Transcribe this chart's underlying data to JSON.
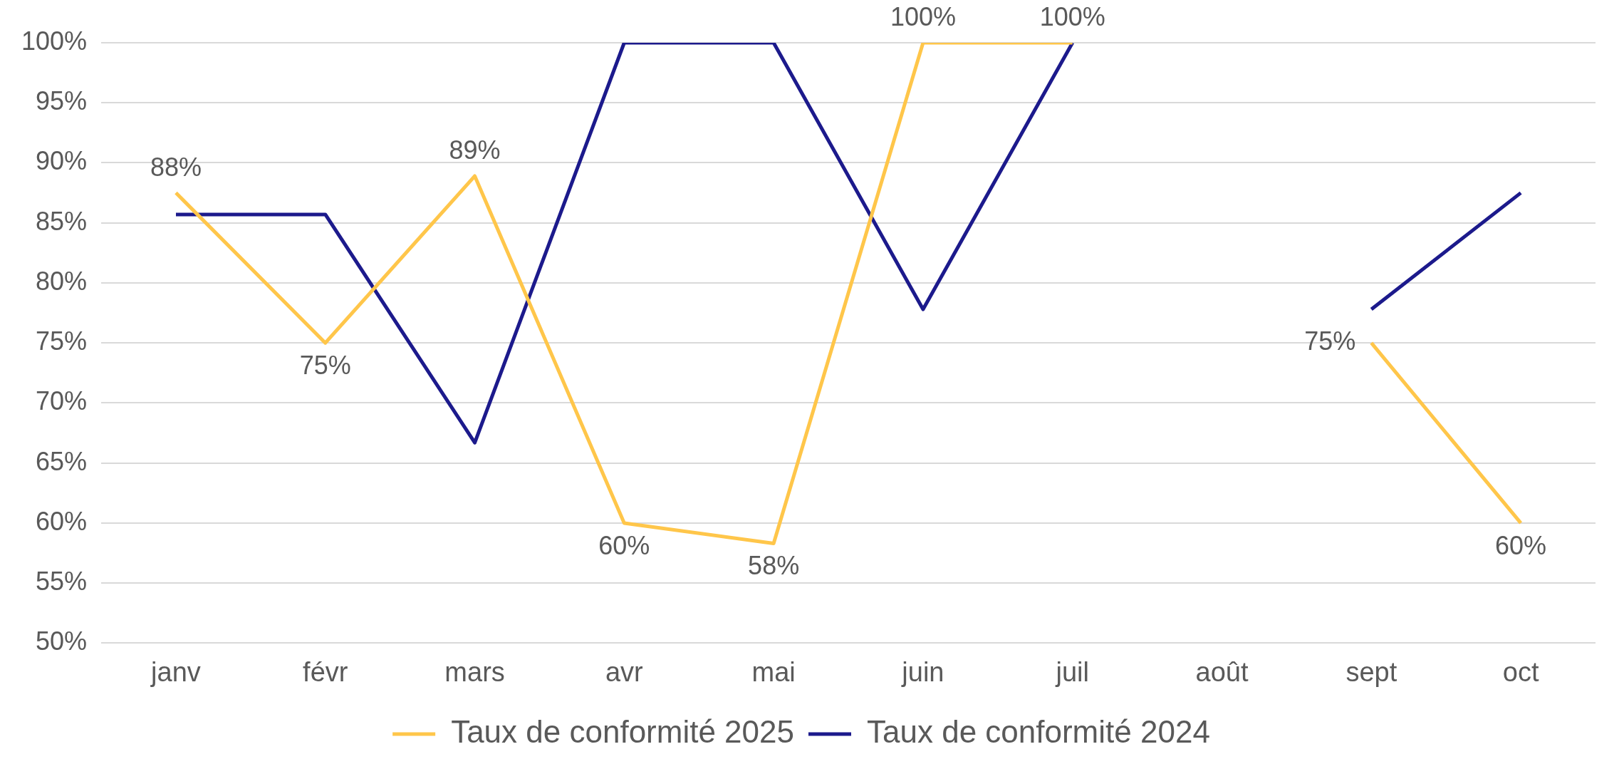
{
  "chart_data": {
    "type": "line",
    "categories": [
      "janv",
      "févr",
      "mars",
      "avr",
      "mai",
      "juin",
      "juil",
      "août",
      "sept",
      "oct"
    ],
    "series": [
      {
        "name": "Taux de conformité 2025",
        "color": "#ffc64a",
        "values": [
          87.5,
          75,
          88.9,
          60,
          58.3,
          100,
          100,
          null,
          75,
          60
        ],
        "value_labels": [
          "88%",
          "75%",
          "89%",
          "60%",
          "58%",
          "100%",
          "100%",
          null,
          "75%",
          "60%"
        ]
      },
      {
        "name": "Taux de conformité 2024",
        "color": "#1c1a8c",
        "values": [
          85.7,
          85.7,
          66.7,
          100,
          100,
          77.8,
          100,
          null,
          77.8,
          87.5
        ]
      }
    ],
    "ylim": [
      50,
      100
    ],
    "yticks": [
      {
        "value": 50,
        "label": "50%"
      },
      {
        "value": 55,
        "label": "55%"
      },
      {
        "value": 60,
        "label": "60%"
      },
      {
        "value": 65,
        "label": "65%"
      },
      {
        "value": 70,
        "label": "70%"
      },
      {
        "value": 75,
        "label": "75%"
      },
      {
        "value": 80,
        "label": "80%"
      },
      {
        "value": 85,
        "label": "85%"
      },
      {
        "value": 90,
        "label": "90%"
      },
      {
        "value": 95,
        "label": "95%"
      },
      {
        "value": 100,
        "label": "100%"
      }
    ],
    "grid": "y",
    "legend": "bottom",
    "marker": "none",
    "line_style": "solid"
  }
}
